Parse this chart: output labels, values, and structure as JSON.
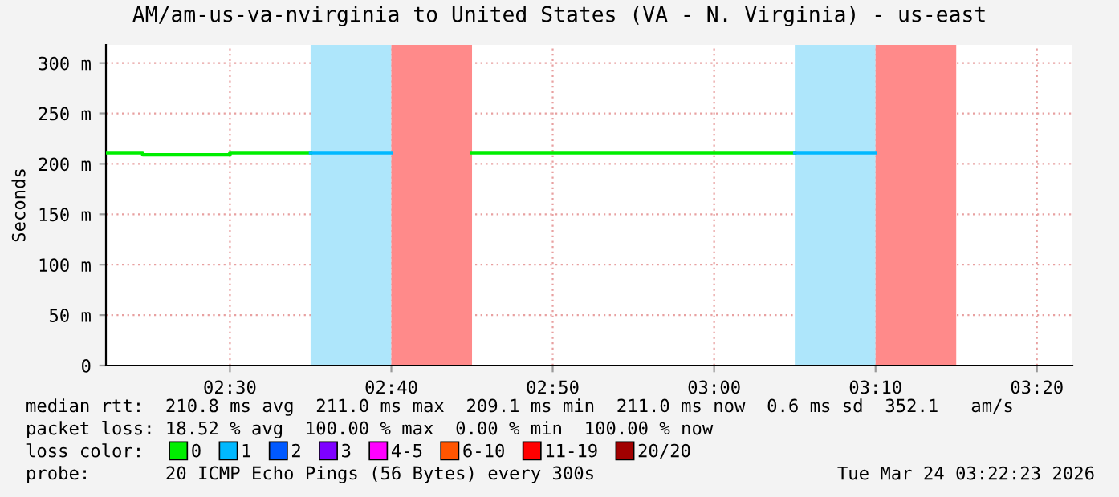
{
  "chart_data": {
    "type": "line",
    "title": "AM/am-us-va-nvirginia to United States (VA - N. Virginia) - us-east",
    "ylabel": "Seconds",
    "xlim": [
      2.372,
      3.37
    ],
    "ylim": [
      0,
      318
    ],
    "xticks": [
      {
        "value": 2.5,
        "label": "02:30"
      },
      {
        "value": 2.6667,
        "label": "02:40"
      },
      {
        "value": 2.8333,
        "label": "02:50"
      },
      {
        "value": 3.0,
        "label": "03:00"
      },
      {
        "value": 3.1667,
        "label": "03:10"
      },
      {
        "value": 3.3333,
        "label": "03:20"
      }
    ],
    "yticks": [
      0,
      {
        "value": 50,
        "label": "50 m"
      },
      {
        "value": 100,
        "label": "100 m"
      },
      {
        "value": 150,
        "label": "150 m"
      },
      {
        "value": 200,
        "label": "200 m"
      },
      {
        "value": 250,
        "label": "250 m"
      },
      {
        "value": 300,
        "label": "300 m"
      }
    ],
    "grid": true,
    "legend": "bottom",
    "legend_title": "loss color:",
    "series": [
      {
        "name": "0",
        "color": "#00ee00",
        "x": [
          2.372,
          2.41,
          2.41,
          2.5,
          2.5,
          2.5833,
          2.6667,
          2.75,
          3.0833
        ],
        "values": [
          211,
          211,
          209,
          209,
          211,
          211,
          null,
          211,
          211
        ]
      },
      {
        "name": "1",
        "color": "#00b8ff",
        "x": [
          2.5833,
          2.6667,
          2.75,
          3.0833,
          3.1667
        ],
        "values": [
          211,
          211,
          null,
          211,
          211
        ]
      },
      {
        "name": "2",
        "color": "#0059ff"
      },
      {
        "name": "3",
        "color": "#7e00ff"
      },
      {
        "name": "4-5",
        "color": "#ff00ff"
      },
      {
        "name": "6-10",
        "color": "#ff5500"
      },
      {
        "name": "11-19",
        "color": "#ff0000"
      },
      {
        "name": "20/20",
        "color": "#a10000"
      }
    ],
    "bands": [
      {
        "axis": "x",
        "from": 2.5833,
        "to": 2.6667,
        "color": "#aee6fb"
      },
      {
        "axis": "x",
        "from": 2.6667,
        "to": 2.75,
        "color": "#ff8a8a"
      },
      {
        "axis": "x",
        "from": 3.0833,
        "to": 3.1667,
        "color": "#aee6fb"
      },
      {
        "axis": "x",
        "from": 3.1667,
        "to": 3.25,
        "color": "#ff8a8a"
      }
    ],
    "annotations": [
      "median rtt:  210.8 ms avg  211.0 ms max  209.1 ms min  211.0 ms now  0.6 ms sd  352.1   am/s",
      "packet loss: 18.52 % avg  100.00 % max  0.00 % min  100.00 % now",
      "probe:       20 ICMP Echo Pings (56 Bytes) every 300s",
      "Tue Mar 24 03:22:23 2026"
    ]
  }
}
